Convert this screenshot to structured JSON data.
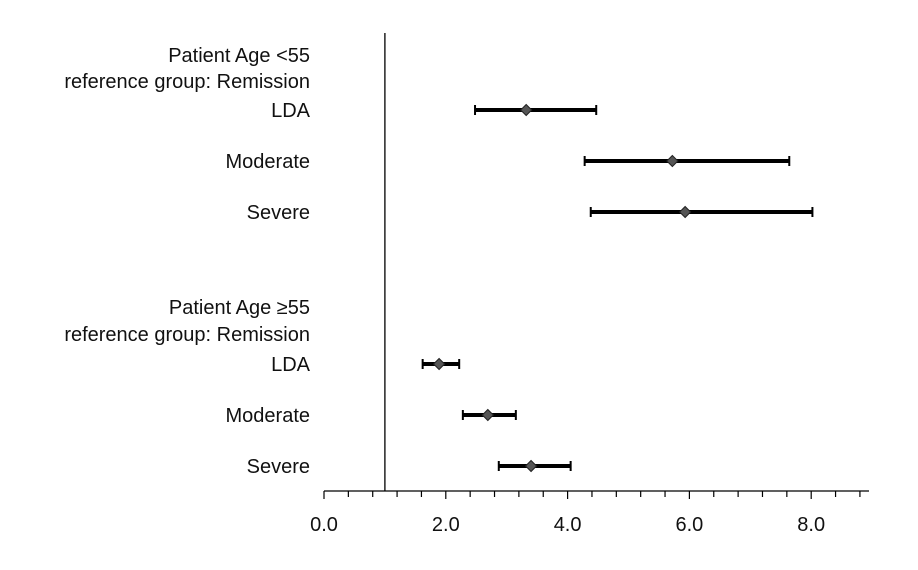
{
  "chart_data": {
    "type": "forest",
    "title": "",
    "xlabel": "",
    "ylabel": "",
    "xlim": [
      0,
      9
    ],
    "reference_line_x": 1.0,
    "x_ticks": [
      0,
      2,
      4,
      6,
      8
    ],
    "x_tick_labels": [
      "0.0",
      "2.0",
      "4.0",
      "6.0",
      "8.0"
    ],
    "x_minor_tick_step": 0.4,
    "groups": [
      {
        "header": [
          "Patient Age <55",
          "reference group: Remission"
        ],
        "rows": [
          {
            "label": "LDA",
            "estimate": 3.32,
            "lower": 2.48,
            "upper": 4.47
          },
          {
            "label": "Moderate",
            "estimate": 5.72,
            "lower": 4.28,
            "upper": 7.64
          },
          {
            "label": "Severe",
            "estimate": 5.93,
            "lower": 4.38,
            "upper": 8.02
          }
        ]
      },
      {
        "header": [
          "Patient Age ≥55",
          "reference group: Remission"
        ],
        "rows": [
          {
            "label": "LDA",
            "estimate": 1.89,
            "lower": 1.62,
            "upper": 2.22
          },
          {
            "label": "Moderate",
            "estimate": 2.69,
            "lower": 2.28,
            "upper": 3.15
          },
          {
            "label": "Severe",
            "estimate": 3.4,
            "lower": 2.87,
            "upper": 4.05
          }
        ]
      }
    ],
    "colors": {
      "marker": "#555555",
      "line": "#000000"
    }
  }
}
